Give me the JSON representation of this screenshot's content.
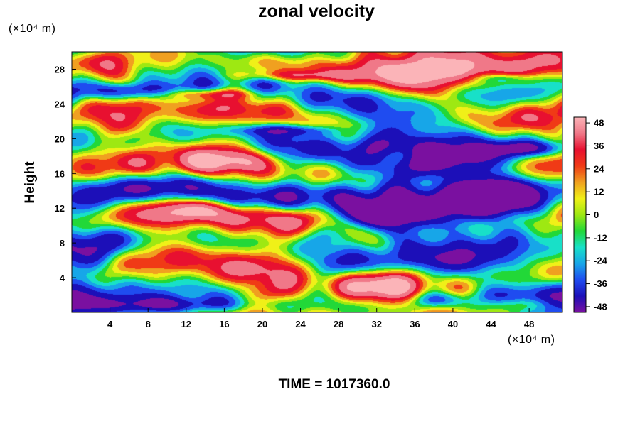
{
  "chart_data": {
    "type": "heatmap",
    "title": "zonal velocity",
    "ylabel": "Height",
    "y_unit": "(×10⁴ m)",
    "x_unit": "(×10⁴ m)",
    "footer": "TIME = 1017360.0",
    "xlim": [
      0,
      51.5
    ],
    "ylim": [
      0,
      30
    ],
    "x_ticks": [
      4,
      8,
      12,
      16,
      20,
      24,
      28,
      32,
      36,
      40,
      44,
      48
    ],
    "y_ticks": [
      4,
      8,
      12,
      16,
      20,
      24,
      28
    ],
    "colorbar": {
      "min": -51,
      "max": 51,
      "ticks": [
        48,
        36,
        24,
        12,
        0,
        -12,
        -24,
        -36,
        -48
      ],
      "colors": [
        "#7a10a0",
        "#1c0fb8",
        "#1f4cf0",
        "#17a6e8",
        "#18e0c8",
        "#22d838",
        "#9ee812",
        "#f0f018",
        "#f0a020",
        "#f03a16",
        "#e81030",
        "#f07888",
        "#fbb4b8"
      ]
    },
    "grid": false
  }
}
